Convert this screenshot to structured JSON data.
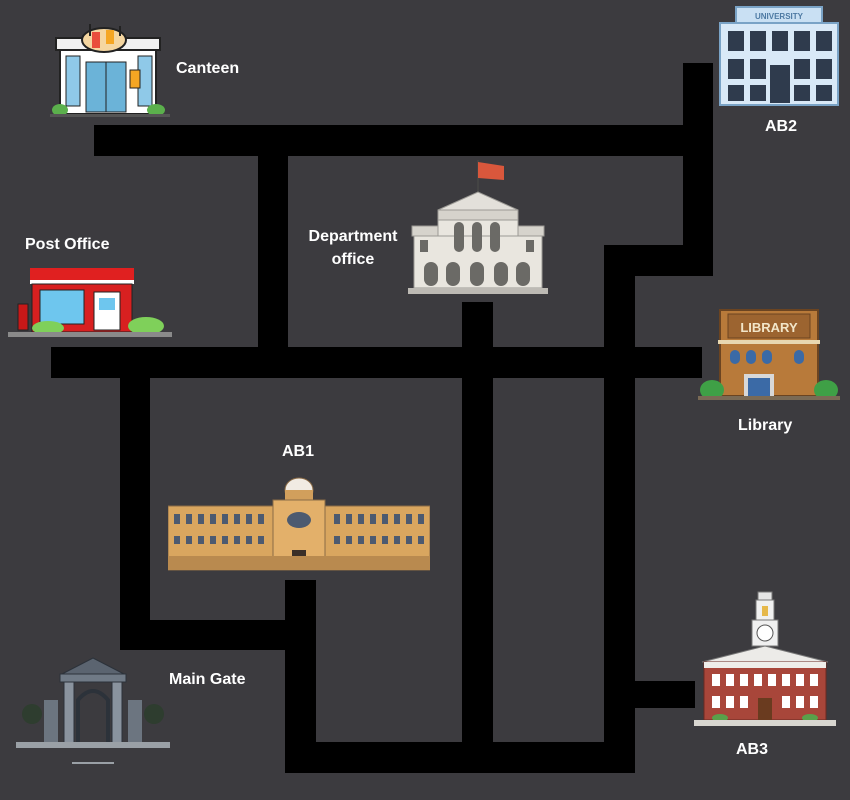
{
  "colors": {
    "background": "#3c3b3f",
    "road": "#000000",
    "label": "#ffffff"
  },
  "places": {
    "canteen": "Canteen",
    "ab2": "AB2",
    "ab2_sign": "UNIVERSITY",
    "post_office": "Post Office",
    "department_office": "Department office",
    "library": "Library",
    "library_sign": "LIBRARY",
    "ab1": "AB1",
    "main_gate": "Main Gate",
    "ab3": "AB3"
  },
  "icons": {
    "canteen": "canteen-building-icon",
    "ab2": "university-building-icon",
    "post_office": "post-office-icon",
    "department_office": "department-office-icon",
    "library": "library-building-icon",
    "ab1": "ab1-building-icon",
    "main_gate": "main-gate-icon",
    "ab3": "ab3-clocktower-icon"
  }
}
